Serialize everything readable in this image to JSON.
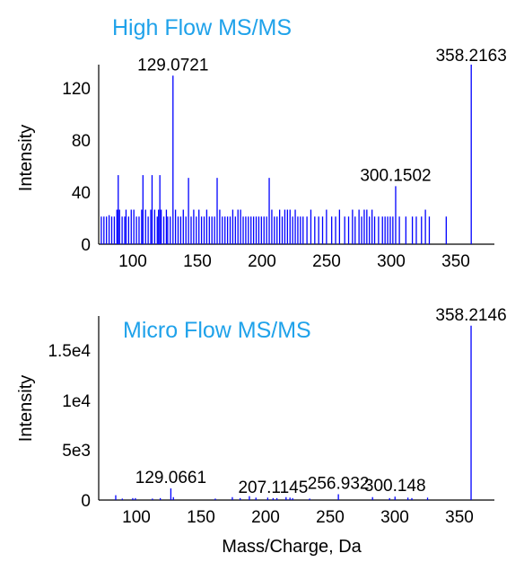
{
  "chart_data": [
    {
      "type": "bar",
      "title": "High Flow MS/MS",
      "xlabel": "",
      "ylabel": "Intensity",
      "xlim": [
        72,
        376
      ],
      "ylim": [
        0,
        130
      ],
      "xticks": [
        "100",
        "150",
        "200",
        "250",
        "300",
        "350"
      ],
      "yticks": [
        "0",
        "40",
        "80",
        "120"
      ],
      "color": "#0000ff",
      "title_color": "#1fa2ea",
      "peaks": [
        {
          "x": 74,
          "y": 20
        },
        {
          "x": 76,
          "y": 20
        },
        {
          "x": 78,
          "y": 20
        },
        {
          "x": 80,
          "y": 21
        },
        {
          "x": 82,
          "y": 20
        },
        {
          "x": 84,
          "y": 20
        },
        {
          "x": 86,
          "y": 25
        },
        {
          "x": 87,
          "y": 50
        },
        {
          "x": 88,
          "y": 25
        },
        {
          "x": 90,
          "y": 20
        },
        {
          "x": 92,
          "y": 20
        },
        {
          "x": 93,
          "y": 25
        },
        {
          "x": 95,
          "y": 20
        },
        {
          "x": 97,
          "y": 25
        },
        {
          "x": 99,
          "y": 25
        },
        {
          "x": 101,
          "y": 20
        },
        {
          "x": 103,
          "y": 20
        },
        {
          "x": 105,
          "y": 25
        },
        {
          "x": 106,
          "y": 50
        },
        {
          "x": 108,
          "y": 25
        },
        {
          "x": 110,
          "y": 20
        },
        {
          "x": 112,
          "y": 25
        },
        {
          "x": 113,
          "y": 50
        },
        {
          "x": 115,
          "y": 25
        },
        {
          "x": 117,
          "y": 20
        },
        {
          "x": 118,
          "y": 25
        },
        {
          "x": 119,
          "y": 50
        },
        {
          "x": 120,
          "y": 25
        },
        {
          "x": 122,
          "y": 20
        },
        {
          "x": 124,
          "y": 25
        },
        {
          "x": 125,
          "y": 20
        },
        {
          "x": 127,
          "y": 20
        },
        {
          "x": 129.0721,
          "y": 122
        },
        {
          "x": 131,
          "y": 25
        },
        {
          "x": 133,
          "y": 20
        },
        {
          "x": 135,
          "y": 20
        },
        {
          "x": 137,
          "y": 25
        },
        {
          "x": 139,
          "y": 20
        },
        {
          "x": 141,
          "y": 48
        },
        {
          "x": 143,
          "y": 20
        },
        {
          "x": 145,
          "y": 25
        },
        {
          "x": 147,
          "y": 20
        },
        {
          "x": 149,
          "y": 25
        },
        {
          "x": 151,
          "y": 20
        },
        {
          "x": 153,
          "y": 20
        },
        {
          "x": 155,
          "y": 25
        },
        {
          "x": 157,
          "y": 20
        },
        {
          "x": 159,
          "y": 20
        },
        {
          "x": 161,
          "y": 20
        },
        {
          "x": 163,
          "y": 48
        },
        {
          "x": 165,
          "y": 25
        },
        {
          "x": 167,
          "y": 20
        },
        {
          "x": 169,
          "y": 20
        },
        {
          "x": 171,
          "y": 20
        },
        {
          "x": 173,
          "y": 20
        },
        {
          "x": 175,
          "y": 25
        },
        {
          "x": 177,
          "y": 20
        },
        {
          "x": 179,
          "y": 25
        },
        {
          "x": 181,
          "y": 25
        },
        {
          "x": 183,
          "y": 20
        },
        {
          "x": 185,
          "y": 20
        },
        {
          "x": 187,
          "y": 20
        },
        {
          "x": 189,
          "y": 20
        },
        {
          "x": 191,
          "y": 20
        },
        {
          "x": 193,
          "y": 20
        },
        {
          "x": 195,
          "y": 20
        },
        {
          "x": 197,
          "y": 20
        },
        {
          "x": 199,
          "y": 20
        },
        {
          "x": 201,
          "y": 20
        },
        {
          "x": 203,
          "y": 48
        },
        {
          "x": 205,
          "y": 25
        },
        {
          "x": 207,
          "y": 20
        },
        {
          "x": 209,
          "y": 20
        },
        {
          "x": 211,
          "y": 25
        },
        {
          "x": 213,
          "y": 20
        },
        {
          "x": 215,
          "y": 25
        },
        {
          "x": 217,
          "y": 25
        },
        {
          "x": 219,
          "y": 25
        },
        {
          "x": 221,
          "y": 20
        },
        {
          "x": 223,
          "y": 25
        },
        {
          "x": 225,
          "y": 20
        },
        {
          "x": 227,
          "y": 20
        },
        {
          "x": 229,
          "y": 20
        },
        {
          "x": 232,
          "y": 20
        },
        {
          "x": 235,
          "y": 25
        },
        {
          "x": 238,
          "y": 20
        },
        {
          "x": 241,
          "y": 20
        },
        {
          "x": 244,
          "y": 20
        },
        {
          "x": 247,
          "y": 25
        },
        {
          "x": 251,
          "y": 20
        },
        {
          "x": 254,
          "y": 20
        },
        {
          "x": 257,
          "y": 25
        },
        {
          "x": 261,
          "y": 20
        },
        {
          "x": 264,
          "y": 20
        },
        {
          "x": 267,
          "y": 25
        },
        {
          "x": 269,
          "y": 20
        },
        {
          "x": 272,
          "y": 25
        },
        {
          "x": 274,
          "y": 20
        },
        {
          "x": 276,
          "y": 25
        },
        {
          "x": 278,
          "y": 25
        },
        {
          "x": 280,
          "y": 20
        },
        {
          "x": 282,
          "y": 25
        },
        {
          "x": 284,
          "y": 20
        },
        {
          "x": 287,
          "y": 20
        },
        {
          "x": 290,
          "y": 20
        },
        {
          "x": 292,
          "y": 20
        },
        {
          "x": 294,
          "y": 20
        },
        {
          "x": 296,
          "y": 20
        },
        {
          "x": 298,
          "y": 20
        },
        {
          "x": 300.1502,
          "y": 42
        },
        {
          "x": 303,
          "y": 20
        },
        {
          "x": 308,
          "y": 20
        },
        {
          "x": 313,
          "y": 20
        },
        {
          "x": 316,
          "y": 20
        },
        {
          "x": 320,
          "y": 20
        },
        {
          "x": 323,
          "y": 25
        },
        {
          "x": 326,
          "y": 20
        },
        {
          "x": 339,
          "y": 20
        },
        {
          "x": 358.2163,
          "y": 130
        }
      ],
      "labels": [
        {
          "text": "129.0721",
          "x": 129.0721,
          "y": 122
        },
        {
          "text": "300.1502",
          "x": 300.1502,
          "y": 42
        },
        {
          "text": "358.2163",
          "x": 358.2163,
          "y": 130
        }
      ]
    },
    {
      "type": "bar",
      "title": "Micro Flow MS/MS",
      "xlabel": "Mass/Charge, Da",
      "ylabel": "Intensity",
      "xlim": [
        74,
        376
      ],
      "ylim": [
        0,
        19000
      ],
      "xticks": [
        "100",
        "150",
        "200",
        "250",
        "300",
        "350"
      ],
      "yticks": [
        "0",
        "5e3",
        "1e4",
        "1.5e4"
      ],
      "color": "#0000ff",
      "title_color": "#1fa2ea",
      "peaks": [
        {
          "x": 87,
          "y": 500
        },
        {
          "x": 92,
          "y": 150
        },
        {
          "x": 100,
          "y": 200
        },
        {
          "x": 102,
          "y": 200
        },
        {
          "x": 115,
          "y": 150
        },
        {
          "x": 121,
          "y": 200
        },
        {
          "x": 129.0661,
          "y": 1200
        },
        {
          "x": 131,
          "y": 300
        },
        {
          "x": 163,
          "y": 150
        },
        {
          "x": 176,
          "y": 300
        },
        {
          "x": 182,
          "y": 200
        },
        {
          "x": 189,
          "y": 400
        },
        {
          "x": 194,
          "y": 250
        },
        {
          "x": 203,
          "y": 250
        },
        {
          "x": 207.1145,
          "y": 200
        },
        {
          "x": 210,
          "y": 200
        },
        {
          "x": 217,
          "y": 300
        },
        {
          "x": 220,
          "y": 250
        },
        {
          "x": 222,
          "y": 200
        },
        {
          "x": 235,
          "y": 150
        },
        {
          "x": 256.932,
          "y": 600
        },
        {
          "x": 283,
          "y": 300
        },
        {
          "x": 296,
          "y": 200
        },
        {
          "x": 300.148,
          "y": 350
        },
        {
          "x": 310,
          "y": 250
        },
        {
          "x": 313,
          "y": 200
        },
        {
          "x": 325,
          "y": 250
        },
        {
          "x": 358.2146,
          "y": 18000
        }
      ],
      "labels": [
        {
          "text": "129.0661",
          "x": 129.0661,
          "y": 1200
        },
        {
          "text": "207.1145",
          "x": 207.1145,
          "y": 200
        },
        {
          "text": "256.932",
          "x": 256.932,
          "y": 600
        },
        {
          "text": "300.148",
          "x": 300.148,
          "y": 350
        },
        {
          "text": "358.2146",
          "x": 358.2146,
          "y": 18000
        }
      ]
    }
  ]
}
